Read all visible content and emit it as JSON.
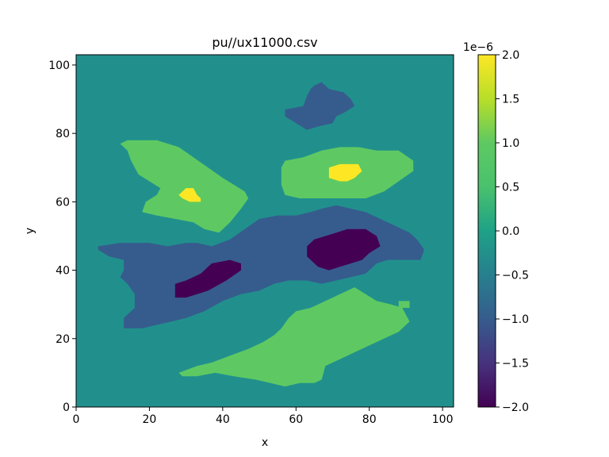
{
  "chart_data": {
    "type": "heatmap",
    "title": "pu//ux11000.csv",
    "xlabel": "x",
    "ylabel": "y",
    "xlim": [
      0,
      103
    ],
    "ylim": [
      0,
      103
    ],
    "x_ticks": [
      0,
      20,
      40,
      60,
      80,
      100
    ],
    "y_ticks": [
      0,
      20,
      40,
      60,
      80,
      100
    ],
    "colormap": "viridis",
    "colorbar": {
      "range": [
        -2.0,
        2.0
      ],
      "scale_label": "1e−6",
      "ticks": [
        2.0,
        1.5,
        1.0,
        0.5,
        0.0,
        -0.5,
        -1.0,
        -1.5,
        -2.0
      ],
      "tick_labels": [
        "2.0",
        "1.5",
        "1.0",
        "0.5",
        "0.0",
        "−0.5",
        "−1.0",
        "−1.5",
        "−2.0"
      ]
    },
    "background_value": 0.0,
    "regions": [
      {
        "name": "negative-north",
        "value": -1.0,
        "points": [
          [
            62,
            88
          ],
          [
            63,
            91
          ],
          [
            64,
            93
          ],
          [
            65,
            94
          ],
          [
            67,
            95
          ],
          [
            69,
            93
          ],
          [
            73,
            92
          ],
          [
            75,
            90
          ],
          [
            76,
            88
          ],
          [
            73,
            86
          ],
          [
            71,
            85
          ],
          [
            70,
            83
          ],
          [
            66,
            82
          ],
          [
            63,
            81
          ],
          [
            60,
            83
          ],
          [
            57,
            85
          ],
          [
            57,
            87
          ]
        ]
      },
      {
        "name": "negative-central",
        "value": -1.0,
        "points": [
          [
            6,
            47
          ],
          [
            12,
            48
          ],
          [
            20,
            48
          ],
          [
            25,
            47
          ],
          [
            30,
            48
          ],
          [
            33,
            48
          ],
          [
            37,
            47
          ],
          [
            42,
            49
          ],
          [
            46,
            52
          ],
          [
            50,
            55
          ],
          [
            55,
            56
          ],
          [
            60,
            56
          ],
          [
            64,
            57
          ],
          [
            67,
            58
          ],
          [
            71,
            59
          ],
          [
            75,
            58
          ],
          [
            79,
            57
          ],
          [
            83,
            55
          ],
          [
            87,
            53
          ],
          [
            91,
            51
          ],
          [
            93,
            49
          ],
          [
            95,
            46
          ],
          [
            94,
            43
          ],
          [
            91,
            43
          ],
          [
            85,
            43
          ],
          [
            82,
            42
          ],
          [
            79,
            39
          ],
          [
            75,
            38
          ],
          [
            71,
            37
          ],
          [
            67,
            36
          ],
          [
            63,
            37
          ],
          [
            58,
            37
          ],
          [
            54,
            36
          ],
          [
            50,
            34
          ],
          [
            45,
            33
          ],
          [
            40,
            31
          ],
          [
            35,
            28
          ],
          [
            30,
            26
          ],
          [
            26,
            25
          ],
          [
            22,
            24
          ],
          [
            18,
            23
          ],
          [
            13,
            23
          ],
          [
            13,
            26
          ],
          [
            16,
            29
          ],
          [
            16,
            33
          ],
          [
            14,
            36
          ],
          [
            12,
            38
          ],
          [
            13,
            40
          ],
          [
            13,
            43
          ],
          [
            9,
            44
          ],
          [
            6,
            46
          ]
        ]
      },
      {
        "name": "negative-min-east",
        "value": -2.0,
        "points": [
          [
            63,
            47
          ],
          [
            65,
            49
          ],
          [
            68,
            50
          ],
          [
            71,
            51
          ],
          [
            74,
            52
          ],
          [
            79,
            52
          ],
          [
            82,
            50
          ],
          [
            83,
            47
          ],
          [
            80,
            45
          ],
          [
            78,
            43
          ],
          [
            75,
            42
          ],
          [
            72,
            41
          ],
          [
            69,
            40
          ],
          [
            66,
            41
          ],
          [
            63,
            44
          ]
        ]
      },
      {
        "name": "negative-min-west",
        "value": -2.0,
        "points": [
          [
            27,
            36
          ],
          [
            30,
            37
          ],
          [
            34,
            39
          ],
          [
            37,
            42
          ],
          [
            42,
            43
          ],
          [
            45,
            42
          ],
          [
            45,
            40
          ],
          [
            41,
            37
          ],
          [
            36,
            34
          ],
          [
            33,
            33
          ],
          [
            30,
            32
          ],
          [
            27,
            32
          ]
        ]
      },
      {
        "name": "positive-northwest",
        "value": 1.0,
        "points": [
          [
            12,
            77
          ],
          [
            14,
            78
          ],
          [
            22,
            78
          ],
          [
            28,
            76
          ],
          [
            32,
            73
          ],
          [
            36,
            70
          ],
          [
            40,
            67
          ],
          [
            43,
            65
          ],
          [
            46,
            63
          ],
          [
            47,
            61
          ],
          [
            45,
            58
          ],
          [
            42,
            54
          ],
          [
            39,
            51
          ],
          [
            35,
            52
          ],
          [
            32,
            54
          ],
          [
            27,
            55
          ],
          [
            22,
            56
          ],
          [
            18,
            57
          ],
          [
            19,
            60
          ],
          [
            22,
            62
          ],
          [
            23,
            64
          ],
          [
            20,
            66
          ],
          [
            17,
            68
          ],
          [
            15,
            72
          ],
          [
            14,
            75
          ]
        ]
      },
      {
        "name": "positive-northeast",
        "value": 1.0,
        "points": [
          [
            56,
            70
          ],
          [
            57,
            72
          ],
          [
            62,
            73
          ],
          [
            67,
            75
          ],
          [
            72,
            76
          ],
          [
            77,
            76
          ],
          [
            82,
            75
          ],
          [
            88,
            75
          ],
          [
            92,
            72
          ],
          [
            92,
            69
          ],
          [
            88,
            66
          ],
          [
            84,
            63
          ],
          [
            79,
            61
          ],
          [
            73,
            61
          ],
          [
            67,
            61
          ],
          [
            61,
            61
          ],
          [
            57,
            62
          ],
          [
            56,
            65
          ]
        ]
      },
      {
        "name": "positive-south",
        "value": 1.0,
        "points": [
          [
            28,
            10
          ],
          [
            33,
            12
          ],
          [
            37,
            13
          ],
          [
            42,
            15
          ],
          [
            47,
            17
          ],
          [
            51,
            19
          ],
          [
            54,
            21
          ],
          [
            56,
            23
          ],
          [
            58,
            26
          ],
          [
            60,
            28
          ],
          [
            64,
            29
          ],
          [
            68,
            31
          ],
          [
            72,
            33
          ],
          [
            76,
            35
          ],
          [
            79,
            33
          ],
          [
            82,
            31
          ],
          [
            86,
            30
          ],
          [
            89,
            29
          ],
          [
            91,
            25
          ],
          [
            88,
            22
          ],
          [
            84,
            20
          ],
          [
            80,
            18
          ],
          [
            76,
            16
          ],
          [
            72,
            14
          ],
          [
            68,
            12
          ],
          [
            67,
            8
          ],
          [
            65,
            7
          ],
          [
            61,
            7
          ],
          [
            57,
            6
          ],
          [
            53,
            7
          ],
          [
            49,
            8
          ],
          [
            43,
            9
          ],
          [
            38,
            10
          ],
          [
            33,
            9
          ],
          [
            29,
            9
          ]
        ]
      },
      {
        "name": "positive-east-speck",
        "value": 1.0,
        "points": [
          [
            88,
            29
          ],
          [
            88,
            31
          ],
          [
            91,
            31
          ],
          [
            91,
            29
          ]
        ]
      },
      {
        "name": "positive-max-northwest",
        "value": 2.0,
        "points": [
          [
            28,
            62
          ],
          [
            30,
            64
          ],
          [
            32,
            64
          ],
          [
            33,
            62
          ],
          [
            34,
            61
          ],
          [
            34,
            60
          ],
          [
            31,
            60
          ],
          [
            29,
            61
          ]
        ]
      },
      {
        "name": "positive-max-northeast",
        "value": 2.0,
        "points": [
          [
            69,
            67
          ],
          [
            69,
            70
          ],
          [
            72,
            71
          ],
          [
            77,
            71
          ],
          [
            78,
            69
          ],
          [
            76,
            67
          ],
          [
            74,
            66
          ],
          [
            72,
            66
          ]
        ]
      }
    ]
  }
}
